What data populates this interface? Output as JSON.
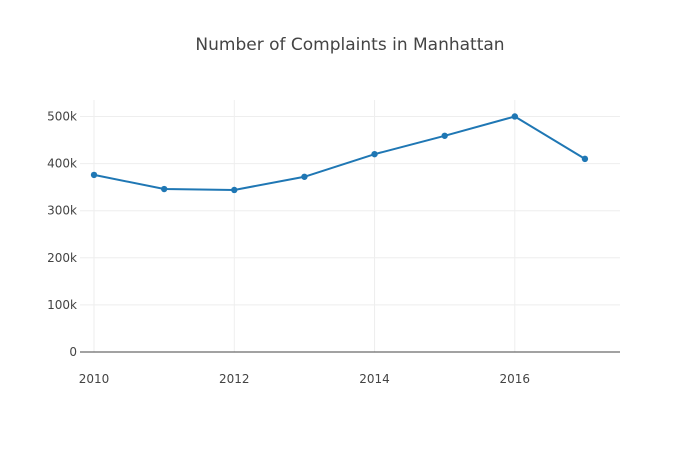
{
  "chart_data": {
    "type": "line",
    "title": "Number of Complaints in Manhattan",
    "xlabel": "",
    "ylabel": "",
    "x": [
      2010,
      2011,
      2012,
      2013,
      2014,
      2015,
      2016,
      2017
    ],
    "series": [
      {
        "values": [
          376000,
          346000,
          344000,
          372000,
          420000,
          459000,
          500000,
          410000
        ]
      }
    ],
    "xlim": [
      2009.8,
      2017.5
    ],
    "ylim": [
      0,
      535000
    ],
    "x_ticks": [
      {
        "value": 2010,
        "label": "2010"
      },
      {
        "value": 2012,
        "label": "2012"
      },
      {
        "value": 2014,
        "label": "2014"
      },
      {
        "value": 2016,
        "label": "2016"
      }
    ],
    "y_ticks": [
      {
        "value": 0,
        "label": "0"
      },
      {
        "value": 100000,
        "label": "100k"
      },
      {
        "value": 200000,
        "label": "200k"
      },
      {
        "value": 300000,
        "label": "300k"
      },
      {
        "value": 400000,
        "label": "400k"
      },
      {
        "value": 500000,
        "label": "500k"
      }
    ],
    "grid": true,
    "legend": "none",
    "line_color": "#1f77b4",
    "markers": true
  }
}
